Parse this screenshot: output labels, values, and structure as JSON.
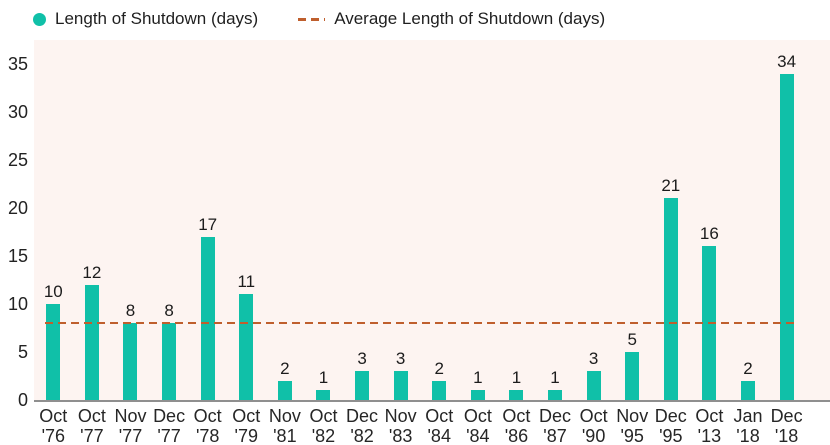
{
  "legend": [
    {
      "label": "Length of Shutdown (days)",
      "marker": "dot-icon",
      "color": "#10c0a8"
    },
    {
      "label": "Average Length of Shutdown (days)",
      "marker": "dashed-line-icon",
      "color": "#bf5f2d"
    }
  ],
  "chart_data": {
    "type": "bar",
    "categories": [
      {
        "month": "Oct",
        "year": "'76"
      },
      {
        "month": "Oct",
        "year": "'77"
      },
      {
        "month": "Nov",
        "year": "'77"
      },
      {
        "month": "Dec",
        "year": "'77"
      },
      {
        "month": "Oct",
        "year": "'78"
      },
      {
        "month": "Oct",
        "year": "'79"
      },
      {
        "month": "Nov",
        "year": "'81"
      },
      {
        "month": "Oct",
        "year": "'82"
      },
      {
        "month": "Dec",
        "year": "'82"
      },
      {
        "month": "Nov",
        "year": "'83"
      },
      {
        "month": "Oct",
        "year": "'84"
      },
      {
        "month": "Oct",
        "year": "'84"
      },
      {
        "month": "Oct",
        "year": "'86"
      },
      {
        "month": "Dec",
        "year": "'87"
      },
      {
        "month": "Oct",
        "year": "'90"
      },
      {
        "month": "Nov",
        "year": "'95"
      },
      {
        "month": "Dec",
        "year": "'95"
      },
      {
        "month": "Oct",
        "year": "'13"
      },
      {
        "month": "Jan",
        "year": "'18"
      },
      {
        "month": "Dec",
        "year": "'18"
      }
    ],
    "values": [
      10,
      12,
      8,
      8,
      17,
      11,
      2,
      1,
      3,
      3,
      2,
      1,
      1,
      1,
      3,
      5,
      21,
      16,
      2,
      34
    ],
    "average": 8.05,
    "series_label": "Length of Shutdown (days)",
    "average_label": "Average Length of Shutdown (days)",
    "yticks": [
      0,
      5,
      10,
      15,
      20,
      25,
      30,
      35
    ],
    "ylim": [
      0,
      37.5
    ],
    "title": "",
    "xlabel": "",
    "ylabel": "",
    "grid": false,
    "legend_position": "top-left",
    "bar_color": "#10c0a8",
    "avg_line_color": "#bf5f2d",
    "plot_bg_color": "#fdf4f1",
    "axis_line_color": "#8f8f8f"
  }
}
